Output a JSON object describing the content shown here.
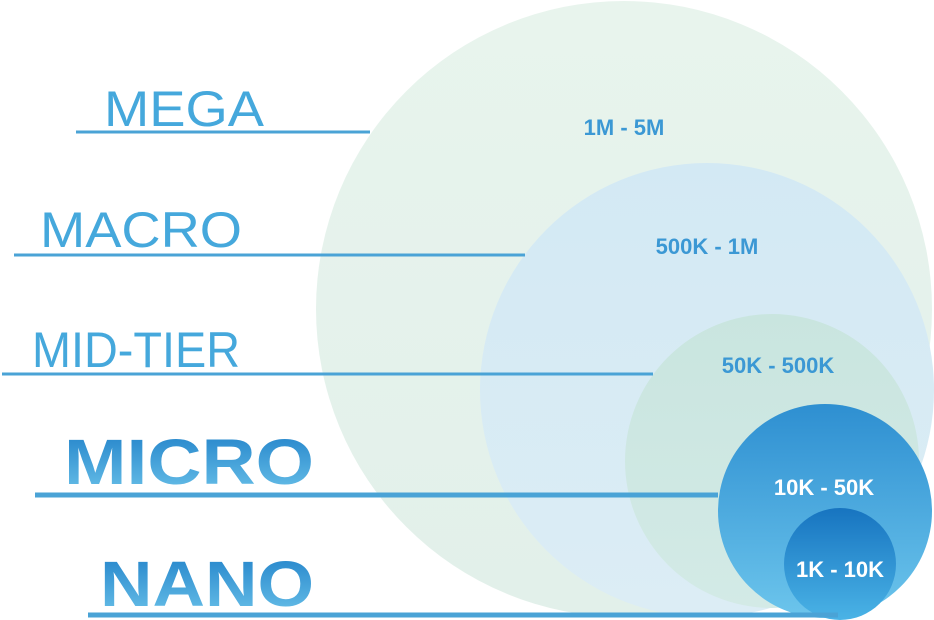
{
  "colors": {
    "line": "#4aa3d6",
    "label_light": "#45a8dc",
    "label_bold": "#2a8fd0",
    "range_on_light": "#3b98d4",
    "range_on_dark": "#ffffff",
    "mega_fill": "#e5f2ea",
    "macro_fill": "#d7eaf4",
    "midtier_fill": "#cfe6e3",
    "micro_fill_top": "#2e8fd1",
    "micro_fill_bottom": "#6cc3ea",
    "nano_fill_top": "#1a78c2",
    "nano_fill_bottom": "#4cb2e4"
  },
  "tiers": [
    {
      "id": "mega",
      "label": "MEGA",
      "range": "1M - 5M",
      "style": "light"
    },
    {
      "id": "macro",
      "label": "MACRO",
      "range": "500K - 1M",
      "style": "light"
    },
    {
      "id": "midtier",
      "label": "MID-TIER",
      "range": "50K - 500K",
      "style": "light"
    },
    {
      "id": "micro",
      "label": "MICRO",
      "range": "10K - 50K",
      "style": "bold"
    },
    {
      "id": "nano",
      "label": "NANO",
      "range": "1K - 10K",
      "style": "bold"
    }
  ]
}
